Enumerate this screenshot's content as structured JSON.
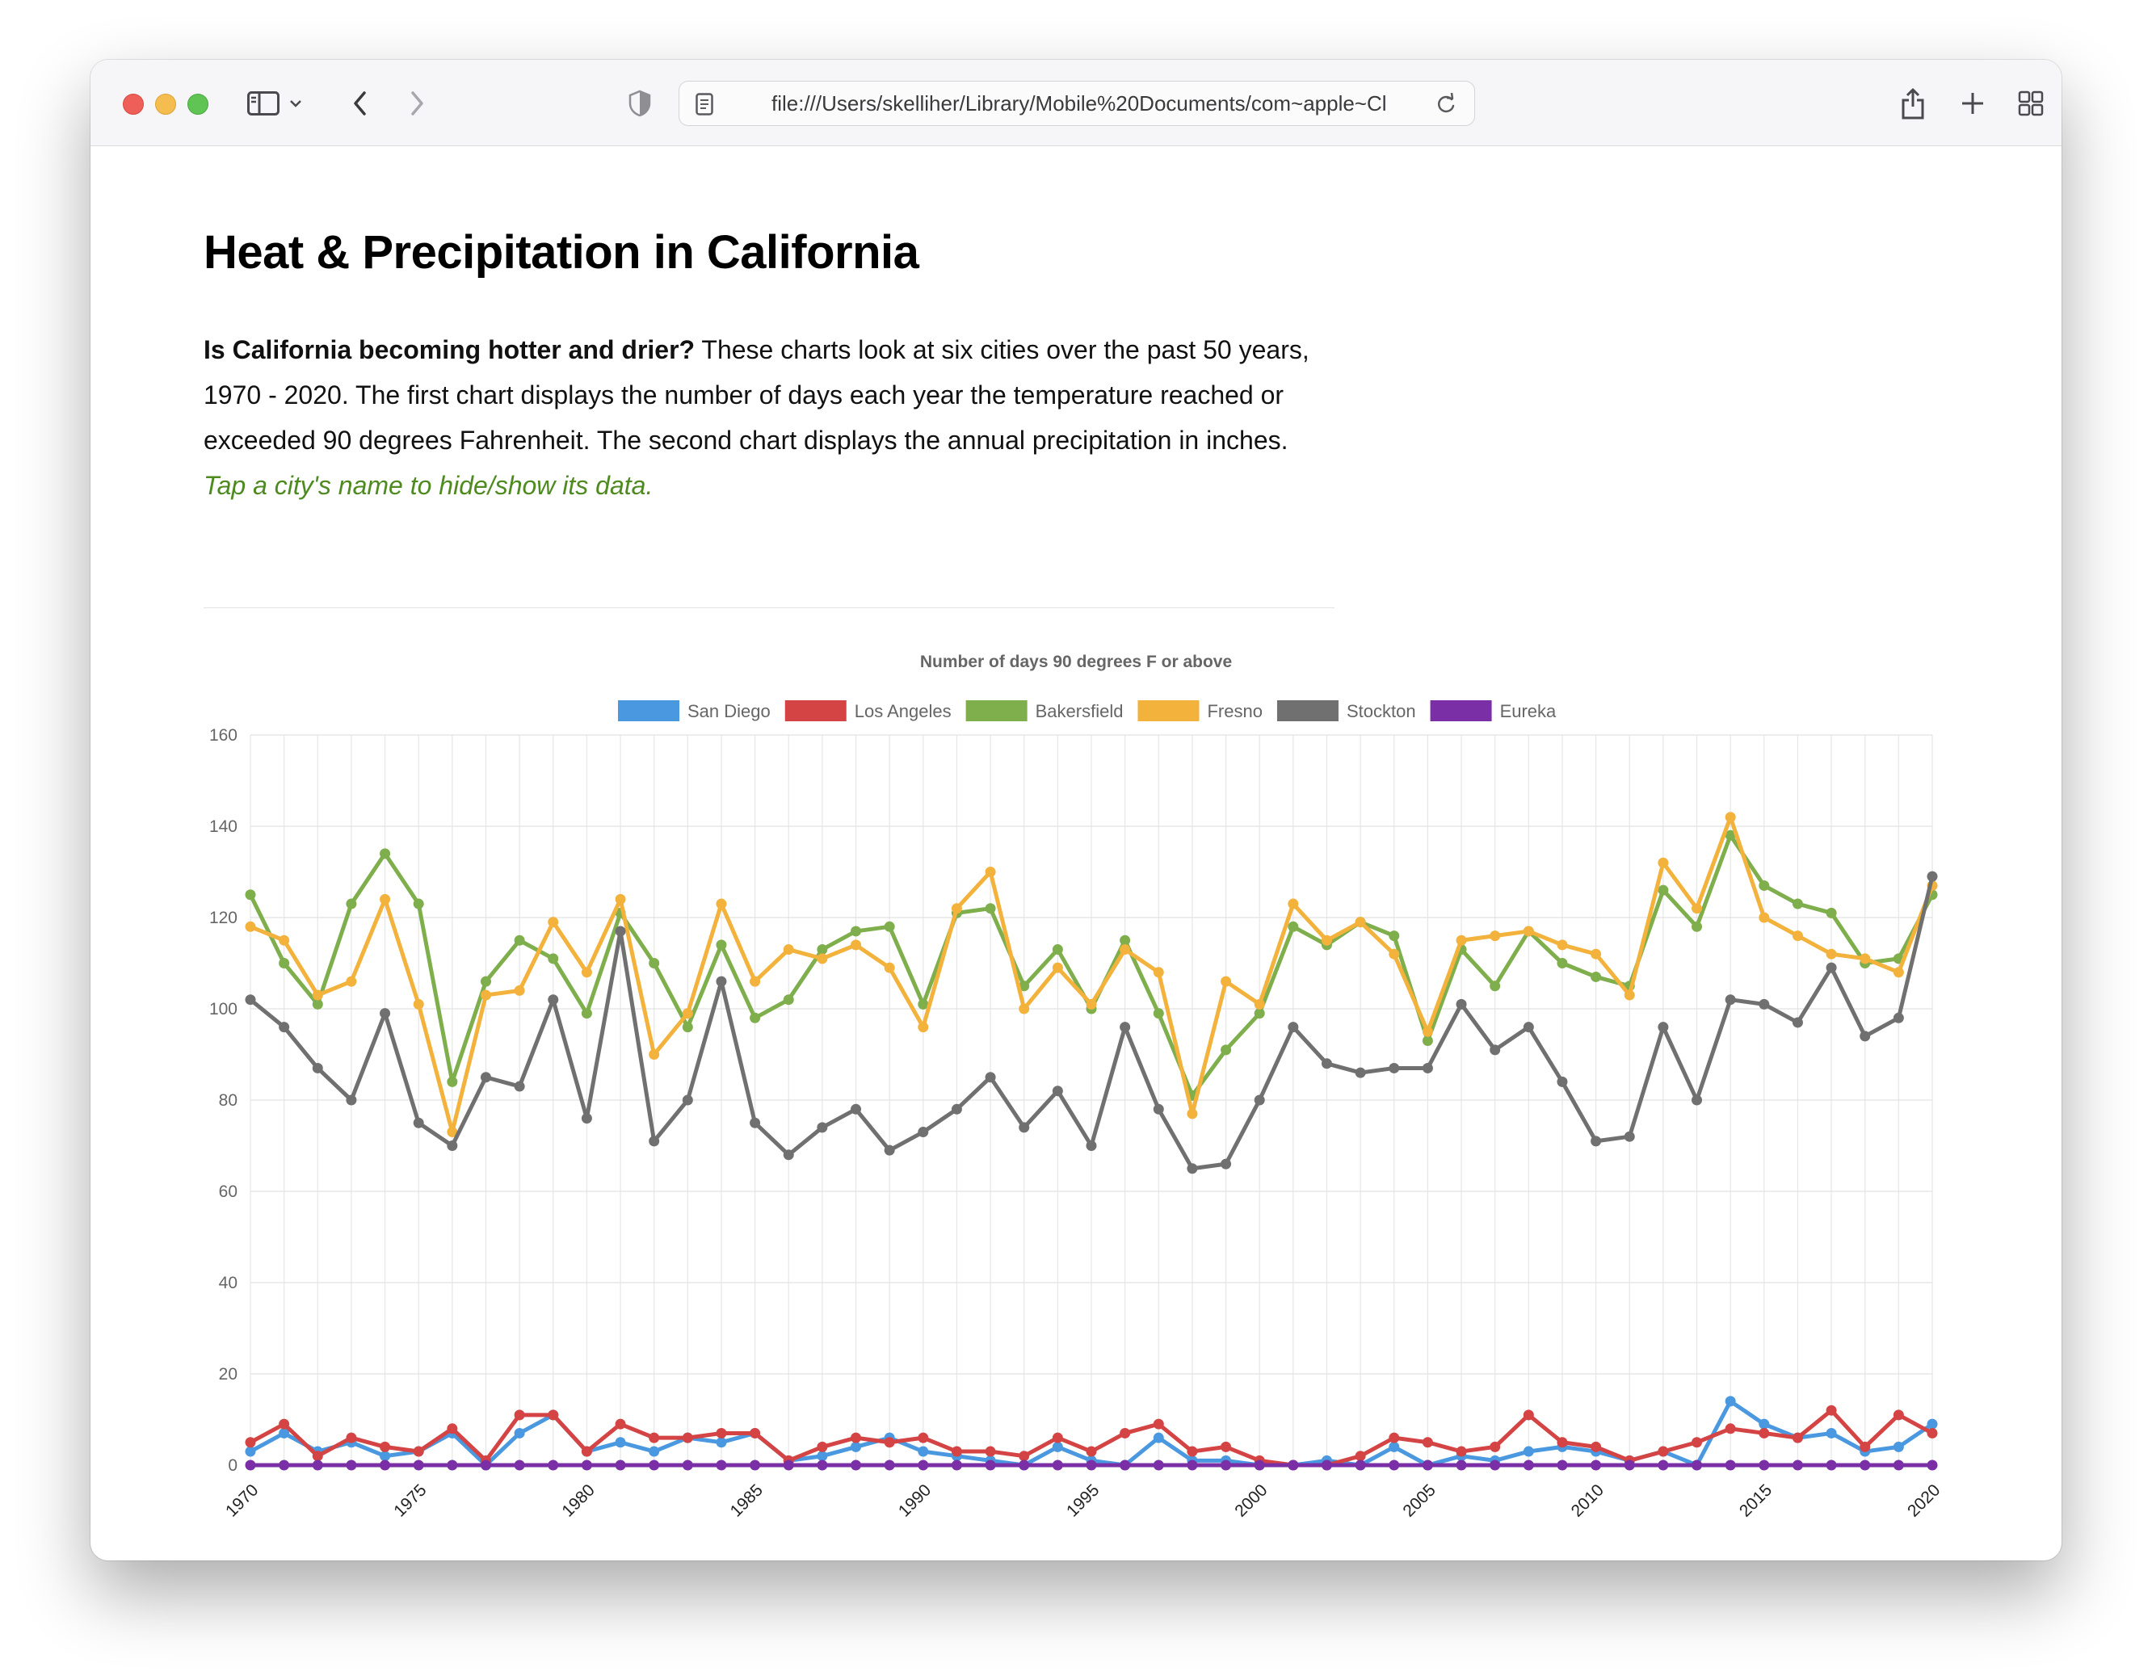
{
  "browser": {
    "url": "file:///Users/skelliher/Library/Mobile%20Documents/com~apple~Cl"
  },
  "page": {
    "title": "Heat & Precipitation in California",
    "intro_bold": "Is California becoming hotter and drier?",
    "intro_text": " These charts look at six cities over the past 50 years, 1970 - 2020. The first chart displays the number of days each year the temperature reached or exceeded 90 degrees Fahrenheit. The second chart displays the annual precipitation in inches.",
    "hint": "Tap a city's name to hide/show its data."
  },
  "chart_data": {
    "type": "line",
    "title": "Number of days 90 degrees F or above",
    "xlabel": "",
    "ylabel": "",
    "ylim": [
      0,
      160
    ],
    "yticks": [
      0,
      20,
      40,
      60,
      80,
      100,
      120,
      140,
      160
    ],
    "xticks": [
      1970,
      1975,
      1980,
      1985,
      1990,
      1995,
      2000,
      2005,
      2010,
      2015,
      2020
    ],
    "grid": true,
    "legend_position": "top",
    "x": [
      1970,
      1971,
      1972,
      1973,
      1974,
      1975,
      1976,
      1977,
      1978,
      1979,
      1980,
      1981,
      1982,
      1983,
      1984,
      1985,
      1986,
      1987,
      1988,
      1989,
      1990,
      1991,
      1992,
      1993,
      1994,
      1995,
      1996,
      1997,
      1998,
      1999,
      2000,
      2001,
      2002,
      2003,
      2004,
      2005,
      2006,
      2007,
      2008,
      2009,
      2010,
      2011,
      2012,
      2013,
      2014,
      2015,
      2016,
      2017,
      2018,
      2019,
      2020
    ],
    "series": [
      {
        "name": "San Diego",
        "color": "#4a98e0",
        "values": [
          3,
          7,
          3,
          5,
          2,
          3,
          7,
          0,
          7,
          11,
          3,
          5,
          3,
          6,
          5,
          7,
          1,
          2,
          4,
          6,
          3,
          2,
          1,
          0,
          4,
          1,
          0,
          6,
          1,
          1,
          0,
          0,
          1,
          0,
          4,
          0,
          2,
          1,
          3,
          4,
          3,
          1,
          3,
          0,
          14,
          9,
          6,
          7,
          3,
          4,
          9
        ]
      },
      {
        "name": "Los Angeles",
        "color": "#d44444",
        "values": [
          5,
          9,
          2,
          6,
          4,
          3,
          8,
          1,
          11,
          11,
          3,
          9,
          6,
          6,
          7,
          7,
          1,
          4,
          6,
          5,
          6,
          3,
          3,
          2,
          6,
          3,
          7,
          9,
          3,
          4,
          1,
          0,
          0,
          2,
          6,
          5,
          3,
          4,
          11,
          5,
          4,
          1,
          3,
          5,
          8,
          7,
          6,
          12,
          4,
          11,
          7
        ]
      },
      {
        "name": "Bakersfield",
        "color": "#7fae4c",
        "values": [
          125,
          110,
          101,
          123,
          134,
          123,
          84,
          106,
          115,
          111,
          99,
          121,
          110,
          96,
          114,
          98,
          102,
          113,
          117,
          118,
          101,
          121,
          122,
          105,
          113,
          100,
          115,
          99,
          81,
          91,
          99,
          118,
          114,
          119,
          116,
          93,
          113,
          105,
          117,
          110,
          107,
          105,
          126,
          118,
          138,
          127,
          123,
          121,
          110,
          111,
          125
        ]
      },
      {
        "name": "Fresno",
        "color": "#f2b23c",
        "values": [
          118,
          115,
          103,
          106,
          124,
          101,
          73,
          103,
          104,
          119,
          108,
          124,
          90,
          99,
          123,
          106,
          113,
          111,
          114,
          109,
          96,
          122,
          130,
          100,
          109,
          101,
          113,
          108,
          77,
          106,
          101,
          123,
          115,
          119,
          112,
          95,
          115,
          116,
          117,
          114,
          112,
          103,
          132,
          122,
          142,
          120,
          116,
          112,
          111,
          108,
          127
        ]
      },
      {
        "name": "Stockton",
        "color": "#707070",
        "values": [
          102,
          96,
          87,
          80,
          99,
          75,
          70,
          85,
          83,
          102,
          76,
          117,
          71,
          80,
          106,
          75,
          68,
          74,
          78,
          69,
          73,
          78,
          85,
          74,
          82,
          70,
          96,
          78,
          65,
          66,
          80,
          96,
          88,
          86,
          87,
          87,
          101,
          91,
          96,
          84,
          71,
          72,
          96,
          80,
          102,
          101,
          97,
          109,
          94,
          98,
          129
        ]
      },
      {
        "name": "Eureka",
        "color": "#7b2fa6",
        "values": [
          0,
          0,
          0,
          0,
          0,
          0,
          0,
          0,
          0,
          0,
          0,
          0,
          0,
          0,
          0,
          0,
          0,
          0,
          0,
          0,
          0,
          0,
          0,
          0,
          0,
          0,
          0,
          0,
          0,
          0,
          0,
          0,
          0,
          0,
          0,
          0,
          0,
          0,
          0,
          0,
          0,
          0,
          0,
          0,
          0,
          0,
          0,
          0,
          0,
          0,
          0
        ]
      }
    ]
  }
}
